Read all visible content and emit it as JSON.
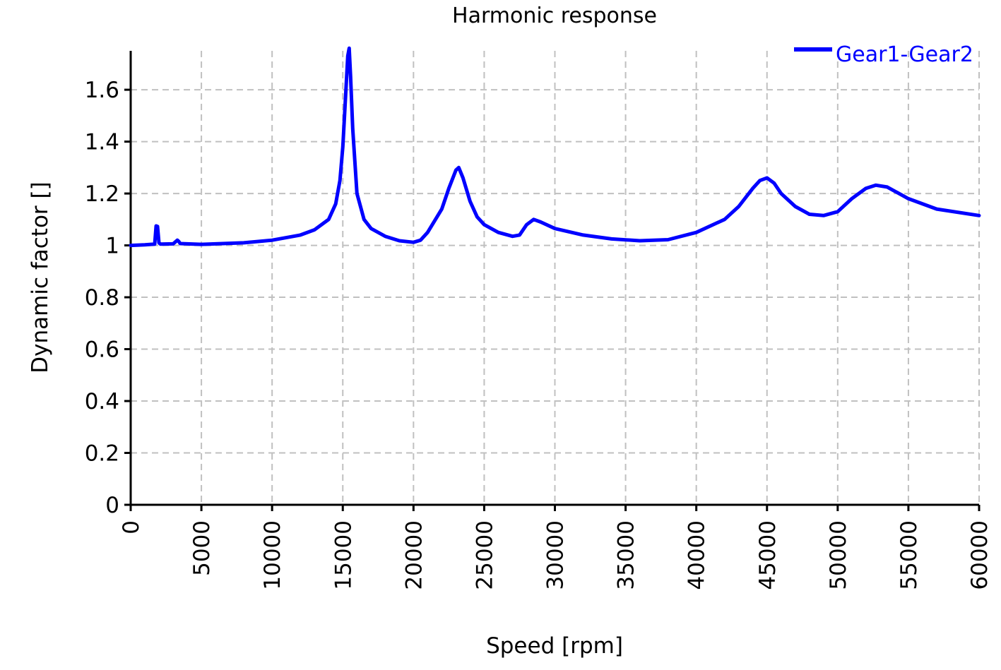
{
  "chart_data": {
    "type": "line",
    "title": "Harmonic response",
    "xlabel": "Speed [rpm]",
    "ylabel": "Dynamic factor []",
    "xlim": [
      0,
      60000
    ],
    "ylim": [
      0,
      1.75
    ],
    "xticks": [
      0,
      5000,
      10000,
      15000,
      20000,
      25000,
      30000,
      35000,
      40000,
      45000,
      50000,
      55000,
      60000
    ],
    "yticks": [
      0,
      0.2,
      0.4,
      0.6,
      0.8,
      1,
      1.2,
      1.4,
      1.6
    ],
    "xtick_labels": [
      "0",
      "5000",
      "10000",
      "15000",
      "20000",
      "25000",
      "30000",
      "35000",
      "40000",
      "45000",
      "50000",
      "55000",
      "60000"
    ],
    "ytick_labels": [
      "0",
      "0.2",
      "0.4",
      "0.6",
      "0.8",
      "1",
      "1.2",
      "1.4",
      "1.6"
    ],
    "grid": true,
    "legend_position": "top-right",
    "series": [
      {
        "name": "Gear1-Gear2",
        "color": "#0000ff",
        "x": [
          0,
          1000,
          1700,
          1800,
          1900,
          2000,
          2100,
          3000,
          3300,
          3400,
          3500,
          5000,
          8000,
          10000,
          12000,
          13000,
          14000,
          14500,
          14800,
          15000,
          15200,
          15350,
          15450,
          15550,
          15700,
          16000,
          16500,
          17000,
          18000,
          19000,
          20000,
          20500,
          21000,
          22000,
          22500,
          23000,
          23200,
          23500,
          24000,
          24500,
          25000,
          26000,
          27000,
          27500,
          28000,
          28500,
          29000,
          30000,
          32000,
          34000,
          36000,
          38000,
          40000,
          42000,
          43000,
          44000,
          44500,
          45000,
          45500,
          46000,
          47000,
          48000,
          49000,
          50000,
          51000,
          52000,
          52700,
          53500,
          54000,
          55000,
          57000,
          60000
        ],
        "y": [
          1.0,
          1.002,
          1.005,
          1.075,
          1.073,
          1.01,
          1.005,
          1.006,
          1.02,
          1.015,
          1.007,
          1.004,
          1.01,
          1.02,
          1.04,
          1.06,
          1.1,
          1.16,
          1.25,
          1.38,
          1.58,
          1.73,
          1.76,
          1.65,
          1.45,
          1.2,
          1.1,
          1.065,
          1.035,
          1.018,
          1.012,
          1.02,
          1.05,
          1.14,
          1.22,
          1.29,
          1.3,
          1.26,
          1.17,
          1.11,
          1.08,
          1.05,
          1.035,
          1.04,
          1.08,
          1.1,
          1.09,
          1.065,
          1.04,
          1.025,
          1.018,
          1.022,
          1.05,
          1.1,
          1.15,
          1.22,
          1.25,
          1.26,
          1.24,
          1.2,
          1.15,
          1.12,
          1.115,
          1.13,
          1.18,
          1.22,
          1.232,
          1.225,
          1.21,
          1.18,
          1.14,
          1.115
        ]
      }
    ]
  }
}
